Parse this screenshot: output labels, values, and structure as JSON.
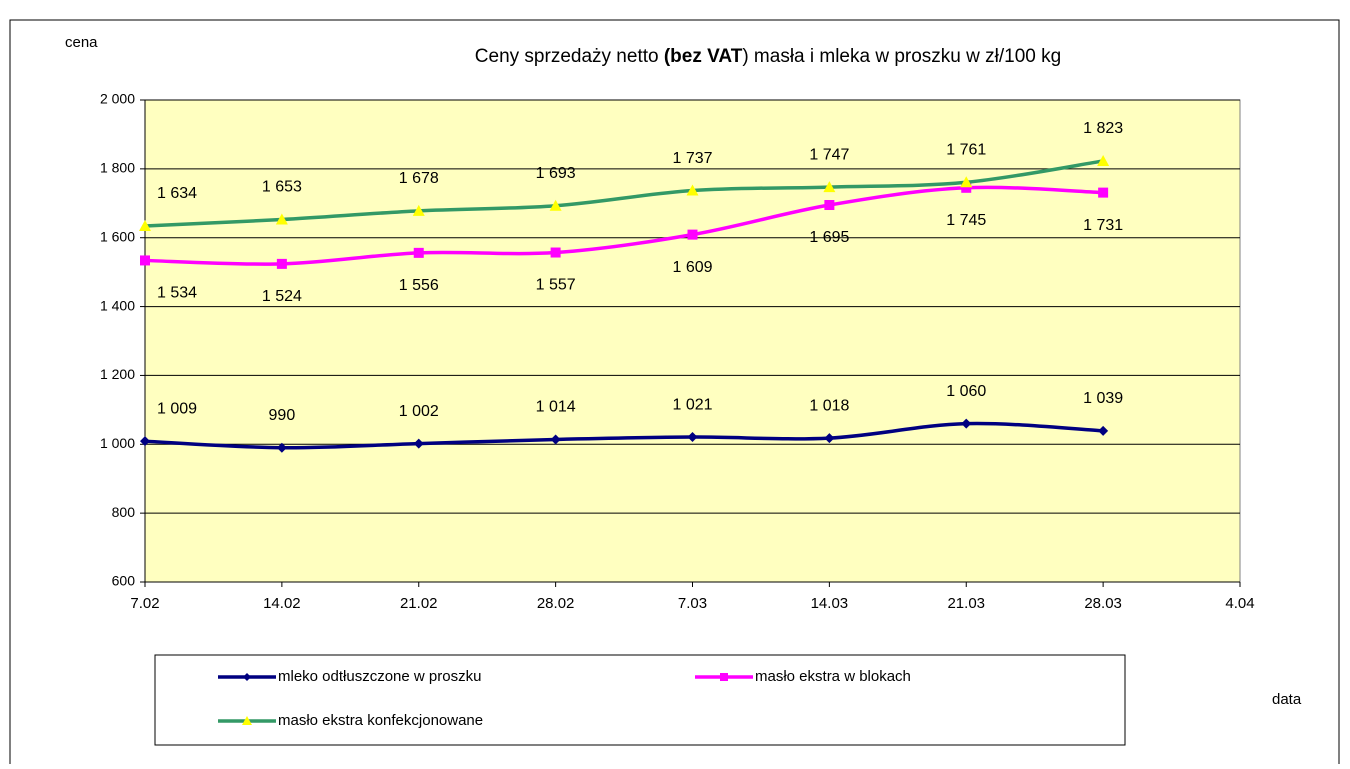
{
  "chart_data": {
    "type": "line",
    "title": [
      "Ceny sprzedaży netto ",
      "(bez VAT",
      ") masła i mleka w proszku w zł/100 kg"
    ],
    "y_label": "cena",
    "x_label": "data",
    "categories": [
      "7.02",
      "14.02",
      "21.02",
      "28.02",
      "7.03",
      "14.03",
      "21.03",
      "28.03",
      "4.04"
    ],
    "series": [
      {
        "name": "mleko odtłuszczone w proszku",
        "color": "#000080",
        "marker": "diamond",
        "label_side": "above",
        "values": [
          1009,
          990,
          1002,
          1014,
          1021,
          1018,
          1060,
          1039,
          null
        ],
        "value_labels": [
          "1 009",
          "990",
          "1 002",
          "1 014",
          "1 021",
          "1 018",
          "1 060",
          "1 039",
          null
        ]
      },
      {
        "name": "masło ekstra w blokach",
        "color": "#ff00ff",
        "marker": "square",
        "label_side": "below",
        "values": [
          1534,
          1524,
          1556,
          1557,
          1609,
          1695,
          1745,
          1731,
          null
        ],
        "value_labels": [
          "1 534",
          "1 524",
          "1 556",
          "1 557",
          "1 609",
          "1 695",
          "1 745",
          "1 731",
          null
        ]
      },
      {
        "name": "masło ekstra konfekcjonowane",
        "color": "#339966",
        "marker": "triangle",
        "marker_color": "#ffff00",
        "label_side": "above",
        "values": [
          1634,
          1653,
          1678,
          1693,
          1737,
          1747,
          1761,
          1823,
          null
        ],
        "value_labels": [
          "1 634",
          "1 653",
          "1 678",
          "1 693",
          "1 737",
          "1 747",
          "1 761",
          "1 823",
          null
        ]
      }
    ],
    "ylim": [
      600,
      2000
    ],
    "yticks": [
      600,
      800,
      {
        "value": 1000,
        "label": "1 000"
      },
      {
        "value": 1200,
        "label": "1 200"
      },
      {
        "value": 1400,
        "label": "1 400"
      },
      {
        "value": 1600,
        "label": "1 600"
      },
      {
        "value": 1800,
        "label": "1 800"
      },
      {
        "value": 2000,
        "label": "2 000"
      }
    ],
    "grid": true,
    "plot_background": "#ffffc0"
  }
}
